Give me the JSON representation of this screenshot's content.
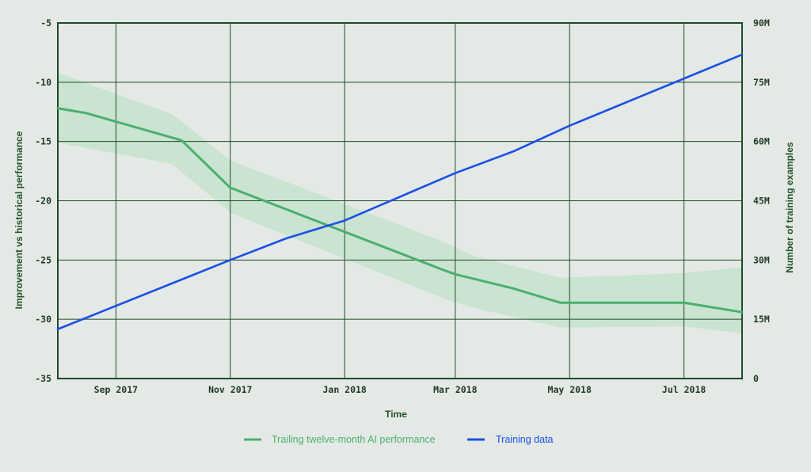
{
  "chart_data": {
    "type": "line",
    "xlabel": "Time",
    "ylabel_left": "Improvement vs historical performance",
    "ylabel_right": "Number of training examples",
    "x_range": [
      "2017-08-01",
      "2018-08-01"
    ],
    "x_ticks": [
      {
        "date": "2017-09-01",
        "label": "Sep 2017"
      },
      {
        "date": "2017-11-01",
        "label": "Nov 2017"
      },
      {
        "date": "2018-01-01",
        "label": "Jan 2018"
      },
      {
        "date": "2018-03-01",
        "label": "Mar 2018"
      },
      {
        "date": "2018-05-01",
        "label": "May 2018"
      },
      {
        "date": "2018-07-01",
        "label": "Jul 2018"
      }
    ],
    "y_left": {
      "range": [
        -35,
        -5
      ],
      "ticks": [
        -35,
        -30,
        -25,
        -20,
        -15,
        -10,
        -5
      ],
      "tick_labels": [
        "-35",
        "-30",
        "-25",
        "-20",
        "-15",
        "-10",
        "-5"
      ]
    },
    "y_right": {
      "range": [
        0,
        90000000
      ],
      "ticks": [
        0,
        15000000,
        30000000,
        45000000,
        60000000,
        75000000,
        90000000
      ],
      "tick_labels": [
        "0",
        "15M",
        "30M",
        "45M",
        "60M",
        "75M",
        "90M"
      ]
    },
    "grid": true,
    "legend_position": "bottom-center",
    "series": [
      {
        "name": "Trailing twelve-month AI performance",
        "axis": "left",
        "color": "#4caf6e",
        "band_color": "#c6e3cc",
        "points": [
          {
            "x": "2017-08-01",
            "y": -12.2
          },
          {
            "x": "2017-08-16",
            "y": -12.6
          },
          {
            "x": "2017-10-06",
            "y": -14.9
          },
          {
            "x": "2017-11-01",
            "y": -18.9
          },
          {
            "x": "2018-02-22",
            "y": -25.8
          },
          {
            "x": "2018-03-01",
            "y": -26.2
          },
          {
            "x": "2018-04-01",
            "y": -27.4
          },
          {
            "x": "2018-04-26",
            "y": -28.6
          },
          {
            "x": "2018-07-01",
            "y": -28.6
          },
          {
            "x": "2018-08-01",
            "y": -29.4
          }
        ],
        "band_upper": [
          {
            "x": "2017-08-01",
            "y": -9.2
          },
          {
            "x": "2017-10-01",
            "y": -12.7
          },
          {
            "x": "2017-11-01",
            "y": -16.6
          },
          {
            "x": "2018-02-22",
            "y": -23.4
          },
          {
            "x": "2018-03-10",
            "y": -24.6
          },
          {
            "x": "2018-04-26",
            "y": -26.5
          },
          {
            "x": "2018-07-01",
            "y": -26.1
          },
          {
            "x": "2018-08-01",
            "y": -25.6
          }
        ],
        "band_lower": [
          {
            "x": "2017-08-01",
            "y": -15.1
          },
          {
            "x": "2017-10-01",
            "y": -16.9
          },
          {
            "x": "2017-11-01",
            "y": -21.0
          },
          {
            "x": "2018-02-22",
            "y": -28.2
          },
          {
            "x": "2018-03-10",
            "y": -29.0
          },
          {
            "x": "2018-04-26",
            "y": -30.7
          },
          {
            "x": "2018-07-01",
            "y": -30.6
          },
          {
            "x": "2018-08-01",
            "y": -31.2
          }
        ]
      },
      {
        "name": "Training data",
        "axis": "right",
        "color": "#1b4fe6",
        "points": [
          {
            "x": "2017-08-01",
            "y": 12500000
          },
          {
            "x": "2017-11-01",
            "y": 30000000
          },
          {
            "x": "2017-12-01",
            "y": 35500000
          },
          {
            "x": "2018-01-01",
            "y": 40000000
          },
          {
            "x": "2018-03-01",
            "y": 52000000
          },
          {
            "x": "2018-04-01",
            "y": 57500000
          },
          {
            "x": "2018-05-01",
            "y": 64000000
          },
          {
            "x": "2018-08-01",
            "y": 82000000
          }
        ]
      }
    ]
  },
  "colors": {
    "background": "#e4e9e6",
    "grid": "#1f4a27",
    "legend_text_green": "#4caf6e",
    "legend_text_blue": "#1b4fe6"
  }
}
